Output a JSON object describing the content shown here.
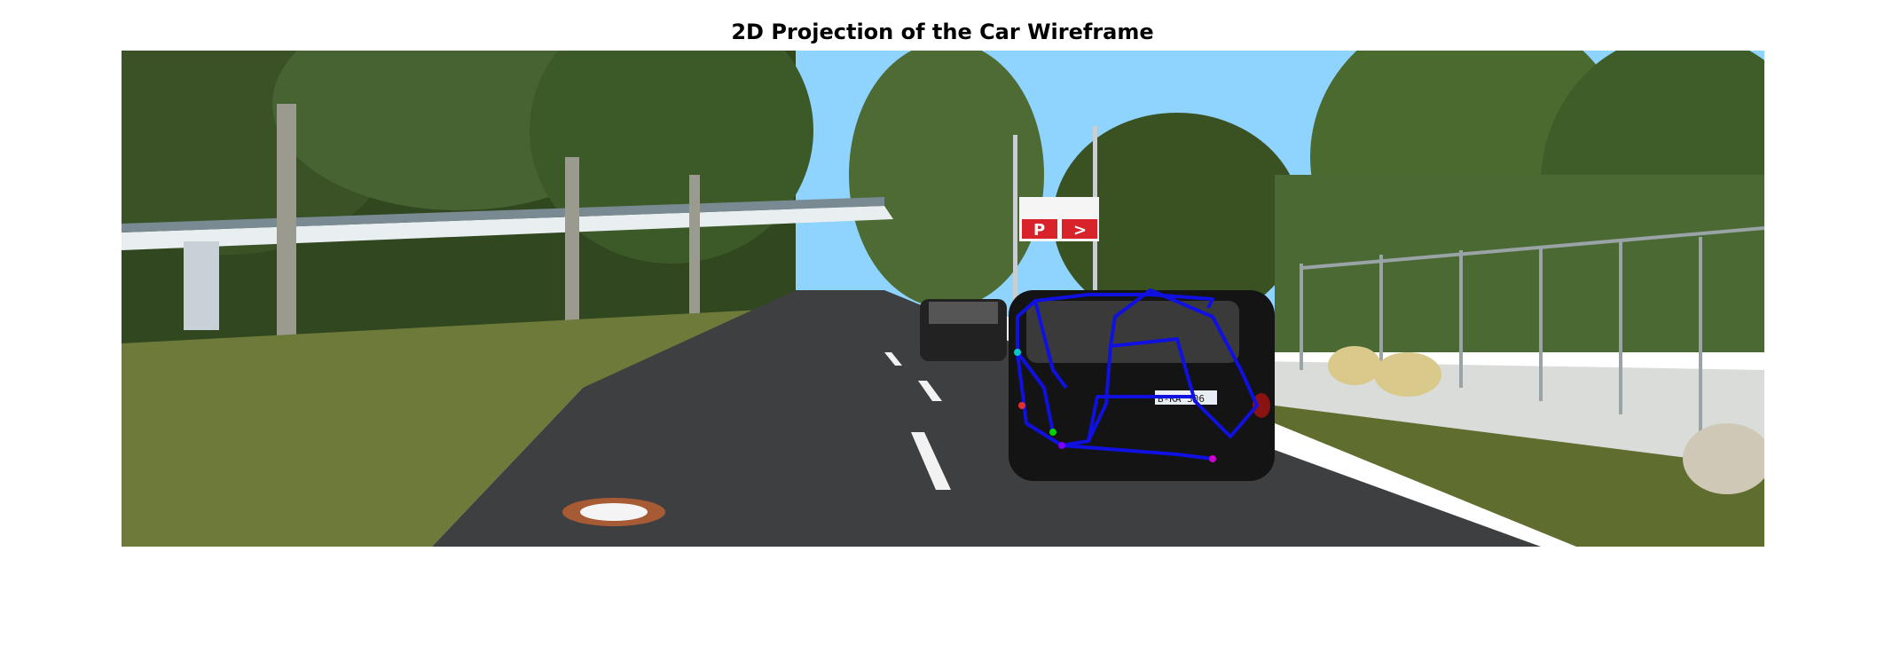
{
  "figure": {
    "title": "2D Projection of the Car Wireframe"
  },
  "scene": {
    "description_tag": "street-scene-with-projected-car-wireframe",
    "parking_sign_letter": "P",
    "parking_sign_arrow": ">",
    "plate_text": "B-KA 306"
  },
  "colors": {
    "wireframe": "#1010e0",
    "sky": "#8fd3ff",
    "road": "#3e3f41",
    "grass": "#6d7a3a",
    "tree": "#3f5a2a",
    "car": "#141414",
    "sign_red": "#d8232b"
  }
}
